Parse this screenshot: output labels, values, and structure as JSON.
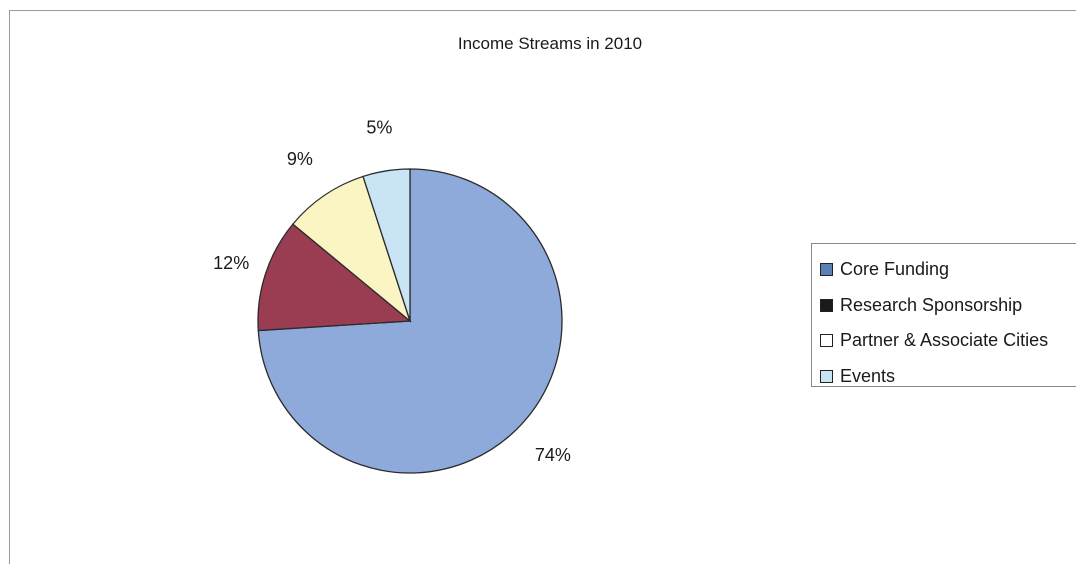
{
  "chart_data": {
    "type": "pie",
    "title": "Income Streams in 2010",
    "legend_position": "right",
    "slices": [
      {
        "name": "Core Funding",
        "value": 74,
        "label": "74%",
        "color": "#8eaadb",
        "legend_color": "#5b7fb5"
      },
      {
        "name": "Research Sponsorship",
        "value": 12,
        "label": "12%",
        "color": "#9b3d52",
        "legend_color": "#1a1a1a"
      },
      {
        "name": "Partner & Associate Cities",
        "value": 9,
        "label": "9%",
        "color": "#fbf5c4",
        "legend_color": "#ffffff"
      },
      {
        "name": "Events",
        "value": 5,
        "label": "5%",
        "color": "#c8e4f5",
        "legend_color": "#c8e4f5"
      }
    ]
  }
}
